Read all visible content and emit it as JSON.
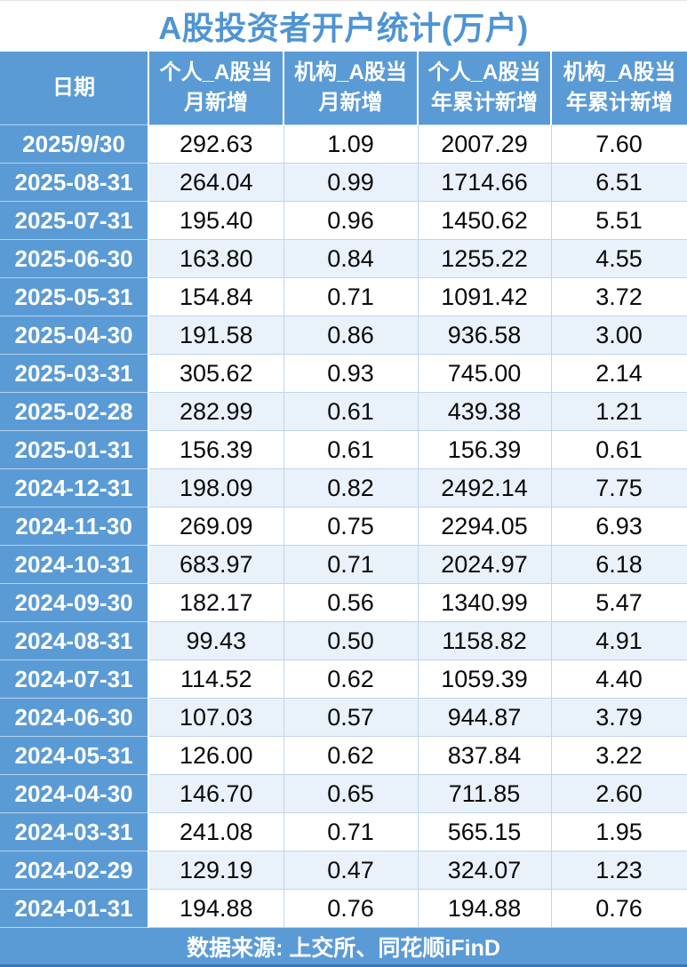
{
  "chart_data": {
    "type": "table",
    "title": "A股投资者开户统计(万户)",
    "columns": [
      "日期",
      "个人_A股当\n月新增",
      "机构_A股当\n月新增",
      "个人_A股当\n年累计新增",
      "机构_A股当\n年累计新增"
    ],
    "rows": [
      [
        "2025/9/30",
        "292.63",
        "1.09",
        "2007.29",
        "7.60"
      ],
      [
        "2025-08-31",
        "264.04",
        "0.99",
        "1714.66",
        "6.51"
      ],
      [
        "2025-07-31",
        "195.40",
        "0.96",
        "1450.62",
        "5.51"
      ],
      [
        "2025-06-30",
        "163.80",
        "0.84",
        "1255.22",
        "4.55"
      ],
      [
        "2025-05-31",
        "154.84",
        "0.71",
        "1091.42",
        "3.72"
      ],
      [
        "2025-04-30",
        "191.58",
        "0.86",
        "936.58",
        "3.00"
      ],
      [
        "2025-03-31",
        "305.62",
        "0.93",
        "745.00",
        "2.14"
      ],
      [
        "2025-02-28",
        "282.99",
        "0.61",
        "439.38",
        "1.21"
      ],
      [
        "2025-01-31",
        "156.39",
        "0.61",
        "156.39",
        "0.61"
      ],
      [
        "2024-12-31",
        "198.09",
        "0.82",
        "2492.14",
        "7.75"
      ],
      [
        "2024-11-30",
        "269.09",
        "0.75",
        "2294.05",
        "6.93"
      ],
      [
        "2024-10-31",
        "683.97",
        "0.71",
        "2024.97",
        "6.18"
      ],
      [
        "2024-09-30",
        "182.17",
        "0.56",
        "1340.99",
        "5.47"
      ],
      [
        "2024-08-31",
        "99.43",
        "0.50",
        "1158.82",
        "4.91"
      ],
      [
        "2024-07-31",
        "114.52",
        "0.62",
        "1059.39",
        "4.40"
      ],
      [
        "2024-06-30",
        "107.03",
        "0.57",
        "944.87",
        "3.79"
      ],
      [
        "2024-05-31",
        "126.00",
        "0.62",
        "837.84",
        "3.22"
      ],
      [
        "2024-04-30",
        "146.70",
        "0.65",
        "711.85",
        "2.60"
      ],
      [
        "2024-03-31",
        "241.08",
        "0.71",
        "565.15",
        "1.95"
      ],
      [
        "2024-02-29",
        "129.19",
        "0.47",
        "324.07",
        "1.23"
      ],
      [
        "2024-01-31",
        "194.88",
        "0.76",
        "194.88",
        "0.76"
      ]
    ],
    "source": "数据来源: 上交所、同花顺iFinD"
  },
  "colors": {
    "header_blue": "#5B9BD5",
    "band_blue": "#E9F1FB",
    "grid": "#BFD5EC",
    "title_blue": "#4E94D4",
    "num_black": "#0A0A0A",
    "bottom_edge": "#3A78B5"
  }
}
